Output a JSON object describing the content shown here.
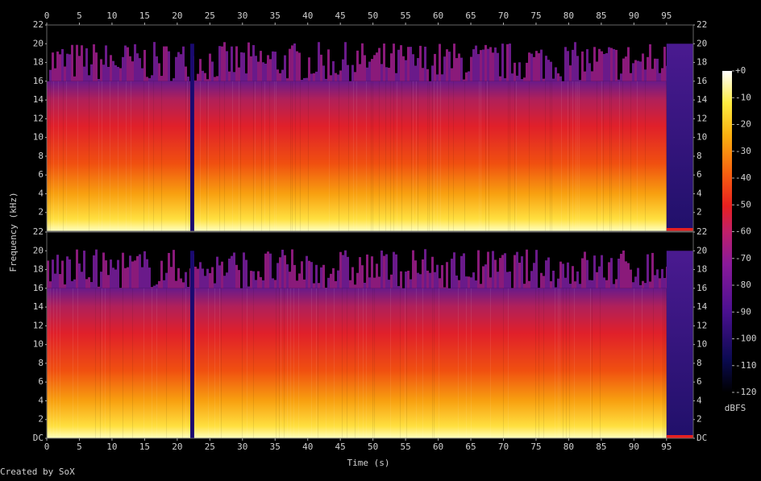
{
  "chart_data": {
    "type": "spectrogram",
    "xlabel": "Time (s)",
    "ylabel": "Frequency (kHz)",
    "xlim": [
      0,
      99.1
    ],
    "xticks": [
      0,
      5,
      10,
      15,
      20,
      25,
      30,
      35,
      40,
      45,
      50,
      55,
      60,
      65,
      70,
      75,
      80,
      85,
      90,
      95
    ],
    "panels": [
      {
        "ylim": [
          0,
          22
        ],
        "yticks": [
          2,
          4,
          6,
          8,
          10,
          12,
          14,
          16,
          18,
          20,
          22
        ]
      },
      {
        "ylim": [
          0,
          22
        ],
        "yticks": [
          {
            "value": 0,
            "label": "DC"
          },
          2,
          4,
          6,
          8,
          10,
          12,
          14,
          16,
          18,
          20,
          22
        ]
      }
    ],
    "colorbar": {
      "label": "dBFS",
      "lim": [
        -120,
        0
      ],
      "ticks": [
        {
          "value": 0,
          "label": "+0"
        },
        -10,
        -20,
        -30,
        -40,
        -50,
        -60,
        -70,
        -80,
        -90,
        -100,
        -110,
        -120
      ]
    },
    "footer": "Created by SoX"
  }
}
